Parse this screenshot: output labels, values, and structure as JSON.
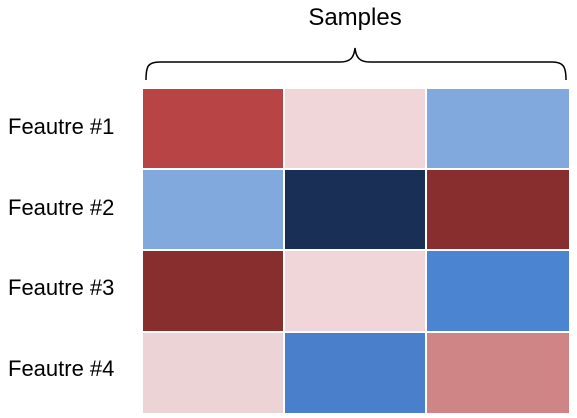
{
  "heatmap": {
    "column_header": "Samples",
    "rows": [
      {
        "label": "Feautre #1",
        "cells": [
          "#b84446",
          "#f0d6d8",
          "#82a9de"
        ]
      },
      {
        "label": "Feautre #2",
        "cells": [
          "#82a9de",
          "#1a2f56",
          "#882e2f"
        ]
      },
      {
        "label": "Feautre #3",
        "cells": [
          "#882e2f",
          "#f0d6d8",
          "#4b84d0"
        ]
      },
      {
        "label": "Feautre #4",
        "cells": [
          "#ecd4d6",
          "#4a7fcb",
          "#cf8486"
        ]
      }
    ]
  }
}
